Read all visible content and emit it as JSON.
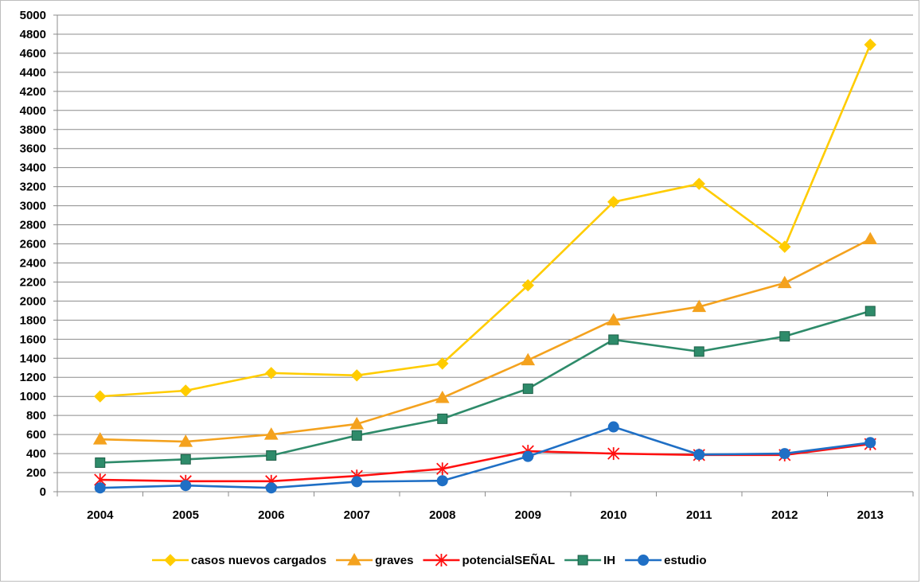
{
  "chart_data": {
    "type": "line",
    "title": "",
    "xlabel": "",
    "ylabel": "",
    "categories": [
      "2004",
      "2005",
      "2006",
      "2007",
      "2008",
      "2009",
      "2010",
      "2011",
      "2012",
      "2013"
    ],
    "ylim": [
      0,
      5000
    ],
    "ytick_step": 200,
    "grid": true,
    "legend_position": "bottom",
    "series": [
      {
        "name": "casos nuevos cargados",
        "color": "#FFCC00",
        "marker": "diamond",
        "values": [
          1000,
          1060,
          1245,
          1220,
          1345,
          2165,
          3040,
          3230,
          2570,
          4690
        ]
      },
      {
        "name": "graves",
        "color": "#F4A21E",
        "marker": "triangle",
        "values": [
          550,
          525,
          600,
          710,
          985,
          1380,
          1800,
          1940,
          2190,
          2650
        ]
      },
      {
        "name": "potencialSEÑAL",
        "color": "#FF1010",
        "marker": "asterisk",
        "values": [
          125,
          110,
          110,
          165,
          240,
          425,
          400,
          385,
          385,
          500
        ]
      },
      {
        "name": "IH",
        "color": "#2E8B6A",
        "marker": "square",
        "values": [
          305,
          340,
          380,
          590,
          765,
          1080,
          1595,
          1470,
          1630,
          1895
        ]
      },
      {
        "name": "estudio",
        "color": "#1F6FC5",
        "marker": "circle",
        "values": [
          40,
          65,
          40,
          105,
          115,
          370,
          680,
          390,
          400,
          515
        ]
      }
    ]
  }
}
